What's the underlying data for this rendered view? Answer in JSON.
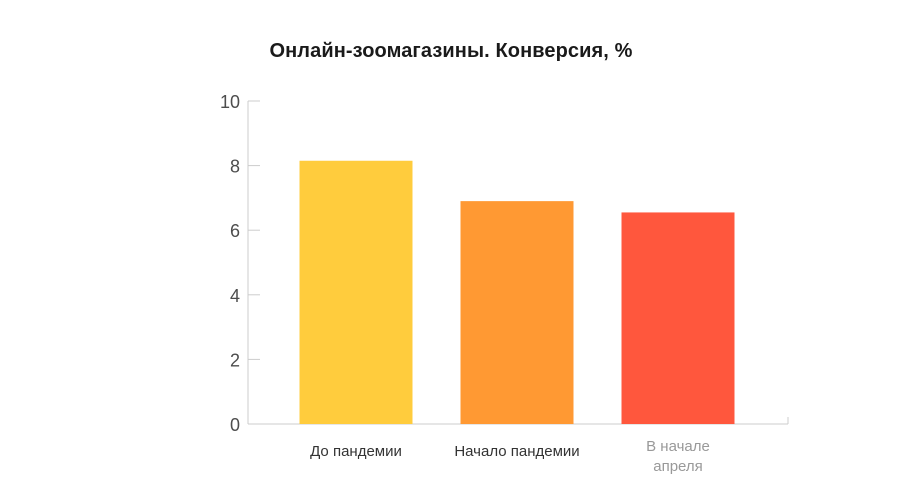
{
  "chart_data": {
    "type": "bar",
    "title": "Онлайн-зоомагазины. Конверсия, %",
    "xlabel": "",
    "ylabel": "",
    "ylim": [
      0,
      10
    ],
    "yticks": [
      0,
      2,
      4,
      6,
      8,
      10
    ],
    "categories": [
      [
        "До пандемии"
      ],
      [
        "Начало пандемии"
      ],
      [
        "В начале",
        "апреля"
      ]
    ],
    "values": [
      8.15,
      6.9,
      6.55
    ],
    "colors": [
      "#FFCC3D",
      "#FF9933",
      "#FF573D"
    ],
    "category_label_colors": [
      "#333333",
      "#333333",
      "#999999"
    ],
    "grid": false,
    "legend": "none"
  }
}
